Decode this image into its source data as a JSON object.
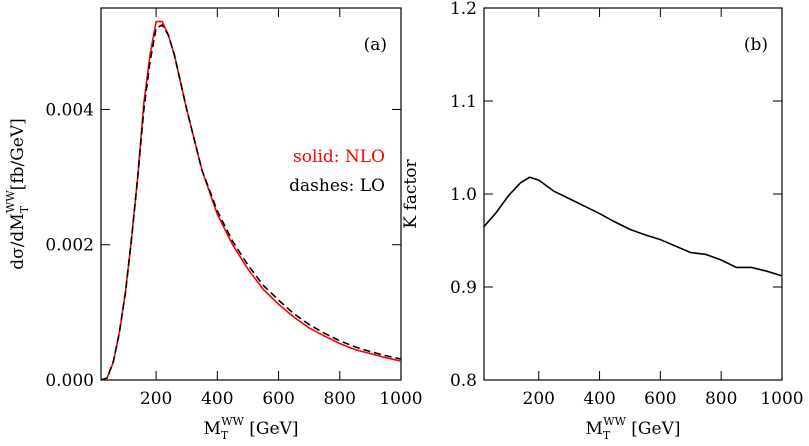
{
  "chart_data": [
    {
      "type": "line",
      "x": [
        20,
        40,
        60,
        80,
        100,
        120,
        140,
        160,
        180,
        200,
        220,
        240,
        260,
        280,
        300,
        350,
        400,
        450,
        500,
        550,
        600,
        650,
        700,
        750,
        800,
        850,
        900,
        950,
        1000
      ],
      "series": [
        {
          "name": "solid: NLO",
          "color": "#ff0000",
          "dash": false,
          "values": [
            0,
            3e-05,
            0.00026,
            0.0007,
            0.0013,
            0.0021,
            0.003,
            0.0041,
            0.0048,
            0.0053,
            0.0053,
            0.0051,
            0.0048,
            0.0044,
            0.004,
            0.0031,
            0.00245,
            0.002,
            0.00164,
            0.00134,
            0.00112,
            0.00093,
            0.00077,
            0.00065,
            0.00054,
            0.00045,
            0.00039,
            0.00033,
            0.00028
          ]
        },
        {
          "name": "dashes: LO",
          "color": "#000000",
          "dash": true,
          "values": [
            0,
            3e-05,
            0.00027,
            0.0007,
            0.0013,
            0.0021,
            0.003,
            0.004,
            0.0047,
            0.0052,
            0.00525,
            0.0051,
            0.0048,
            0.0044,
            0.004,
            0.0031,
            0.0025,
            0.00205,
            0.0017,
            0.0014,
            0.00118,
            0.00098,
            0.00082,
            0.00069,
            0.00058,
            0.00049,
            0.00042,
            0.00036,
            0.00031
          ]
        }
      ],
      "xlim": [
        20,
        1000
      ],
      "xticks": [
        200,
        400,
        600,
        800,
        1000
      ],
      "ylim": [
        0,
        0.0055
      ],
      "yticks": [
        {
          "value": 0,
          "label": "0.000"
        },
        {
          "value": 0.002,
          "label": "0.002"
        },
        {
          "value": 0.004,
          "label": "0.004"
        }
      ],
      "x_label": {
        "main": "M",
        "sub": "T",
        "sup": "WW",
        "unit": " [GeV]"
      },
      "y_label": {
        "main": "dσ/dM",
        "sub": "T",
        "sup": "WW",
        "unit": "[fb/GeV]"
      },
      "annotation": "(a)"
    },
    {
      "type": "line",
      "x": [
        20,
        60,
        100,
        140,
        170,
        200,
        250,
        300,
        350,
        400,
        450,
        500,
        550,
        600,
        650,
        700,
        750,
        800,
        850,
        900,
        950,
        1000
      ],
      "values": [
        0.965,
        0.98,
        0.998,
        1.012,
        1.018,
        1.015,
        1.003,
        0.995,
        0.987,
        0.979,
        0.97,
        0.962,
        0.956,
        0.951,
        0.944,
        0.937,
        0.935,
        0.929,
        0.921,
        0.921,
        0.917,
        0.912
      ],
      "color": "#000000",
      "xlim": [
        20,
        1000
      ],
      "xticks": [
        200,
        400,
        600,
        800,
        1000
      ],
      "ylim": [
        0.8,
        1.2
      ],
      "yticks": [
        0.8,
        0.9,
        {
          "value": 1.0,
          "label": "1.0"
        },
        1.1,
        1.2
      ],
      "x_label": {
        "main": "M",
        "sub": "T",
        "sup": "WW",
        "unit": " [GeV]"
      },
      "y_label": "K factor",
      "annotation": "(b)"
    }
  ]
}
